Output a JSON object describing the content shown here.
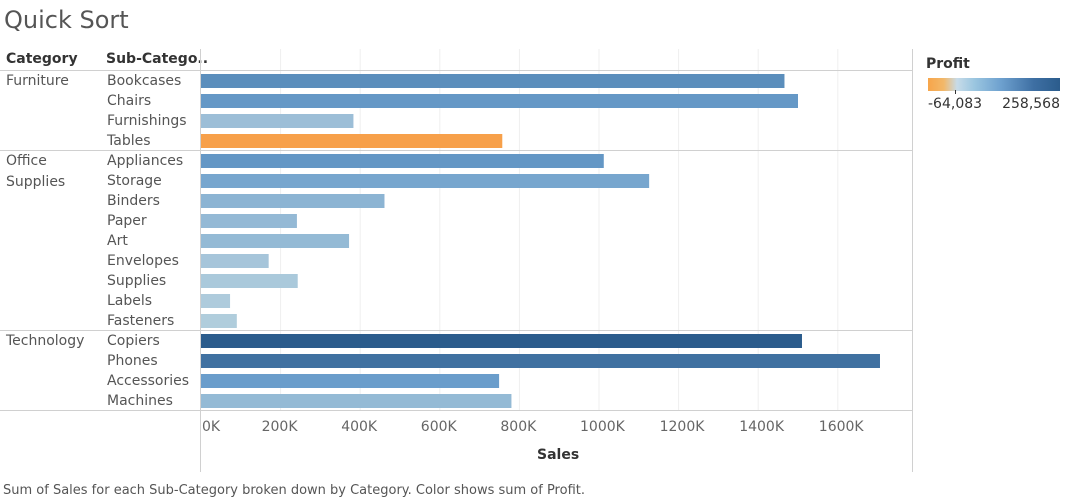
{
  "title": "Quick Sort",
  "header": {
    "category": "Category",
    "subcategory": "Sub-Catego.."
  },
  "caption": "Sum of Sales for each Sub-Category broken down by Category.  Color shows sum of Profit.",
  "legend": {
    "title": "Profit",
    "min_label": "-64,083",
    "max_label": "258,568"
  },
  "colors": {
    "negative": "#f7a04a",
    "low": "#b7d1de",
    "high": "#2b5c8c"
  },
  "chart_data": {
    "type": "bar",
    "orientation": "horizontal",
    "xlabel": "Sales",
    "xlim": [
      0,
      1800000
    ],
    "xticks": [
      0,
      200000,
      400000,
      600000,
      800000,
      1000000,
      1200000,
      1400000,
      1600000
    ],
    "xtick_labels": [
      "0K",
      "200K",
      "400K",
      "600K",
      "800K",
      "1000K",
      "1200K",
      "1400K",
      "1600K"
    ],
    "color_measure": "Profit",
    "color_range": [
      -64083,
      258568
    ],
    "grid": true,
    "legend_position": "top-right",
    "groups": [
      {
        "category": "Furniture",
        "category_lines": [
          "Furniture"
        ],
        "items": [
          {
            "subcategory": "Bookcases",
            "sales": 1466000,
            "profit": 160000
          },
          {
            "subcategory": "Chairs",
            "sales": 1500000,
            "profit": 140000
          },
          {
            "subcategory": "Furnishings",
            "sales": 383000,
            "profit": 46000
          },
          {
            "subcategory": "Tables",
            "sales": 757000,
            "profit": -64083
          }
        ]
      },
      {
        "category": "Office Supplies",
        "category_lines": [
          "Office",
          "Supplies"
        ],
        "items": [
          {
            "subcategory": "Appliances",
            "sales": 1012000,
            "profit": 141000
          },
          {
            "subcategory": "Storage",
            "sales": 1126000,
            "profit": 108000
          },
          {
            "subcategory": "Binders",
            "sales": 461000,
            "profit": 72000
          },
          {
            "subcategory": "Paper",
            "sales": 241000,
            "profit": 59000
          },
          {
            "subcategory": "Art",
            "sales": 372000,
            "profit": 58000
          },
          {
            "subcategory": "Envelopes",
            "sales": 170000,
            "profit": 29000
          },
          {
            "subcategory": "Supplies",
            "sales": 243000,
            "profit": 21000
          },
          {
            "subcategory": "Labels",
            "sales": 73000,
            "profit": 15000
          },
          {
            "subcategory": "Fasteners",
            "sales": 90000,
            "profit": 11000
          }
        ]
      },
      {
        "category": "Technology",
        "category_lines": [
          "Technology"
        ],
        "items": [
          {
            "subcategory": "Copiers",
            "sales": 1510000,
            "profit": 258568
          },
          {
            "subcategory": "Phones",
            "sales": 1706000,
            "profit": 216000
          },
          {
            "subcategory": "Accessories",
            "sales": 749000,
            "profit": 130000
          },
          {
            "subcategory": "Machines",
            "sales": 780000,
            "profit": 58000
          }
        ]
      }
    ]
  }
}
